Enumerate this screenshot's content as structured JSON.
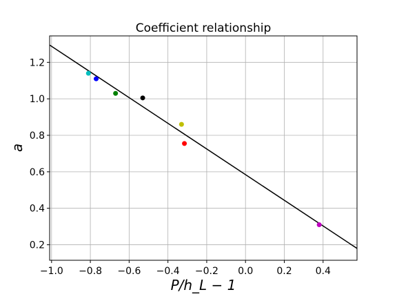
{
  "chart_data": {
    "type": "scatter",
    "title": "Coefficient relationship",
    "xlabel": "P/h_L − 1",
    "ylabel": "a",
    "xlim": [
      -1.01,
      0.575
    ],
    "ylim": [
      0.115,
      1.345
    ],
    "x_ticks": [
      -1.0,
      -0.8,
      -0.6,
      -0.4,
      -0.2,
      0.0,
      0.2,
      0.4
    ],
    "x_tick_labels": [
      "−1.0",
      "−0.8",
      "−0.6",
      "−0.4",
      "−0.2",
      "0.0",
      "0.2",
      "0.4"
    ],
    "y_ticks": [
      0.2,
      0.4,
      0.6,
      0.8,
      1.0,
      1.2
    ],
    "y_tick_labels": [
      "0.2",
      "0.4",
      "0.6",
      "0.8",
      "1.0",
      "1.2"
    ],
    "grid": true,
    "legend": "none",
    "points": [
      {
        "x": -0.81,
        "y": 1.14,
        "color": "#00bfbf"
      },
      {
        "x": -0.77,
        "y": 1.11,
        "color": "#0000ff"
      },
      {
        "x": -0.67,
        "y": 1.03,
        "color": "#008000"
      },
      {
        "x": -0.53,
        "y": 1.005,
        "color": "#000000"
      },
      {
        "x": -0.33,
        "y": 0.86,
        "color": "#bfbf00"
      },
      {
        "x": -0.315,
        "y": 0.755,
        "color": "#ff0000"
      },
      {
        "x": 0.38,
        "y": 0.31,
        "color": "#bf00bf"
      }
    ],
    "fit_line": {
      "x": [
        -1.01,
        0.575
      ],
      "y": [
        1.295,
        0.18
      ],
      "color": "#000000"
    }
  }
}
